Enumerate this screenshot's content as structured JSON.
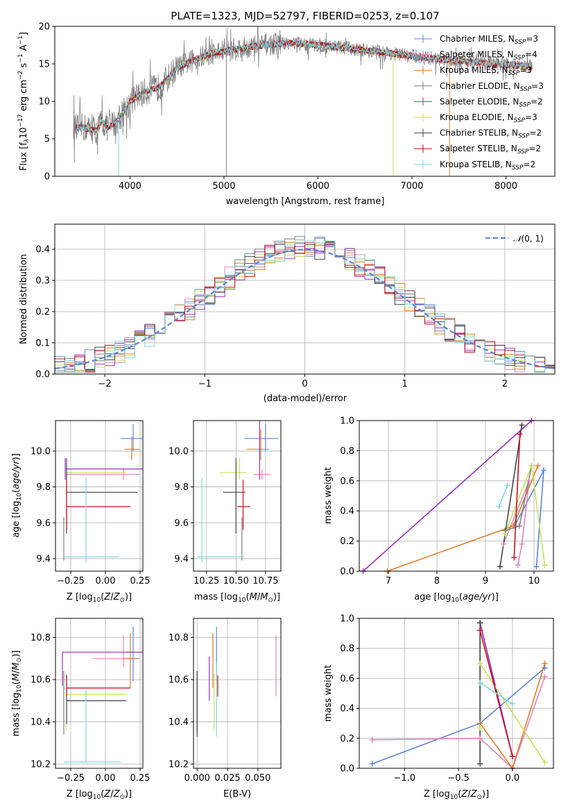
{
  "figure_title": "PLATE=1323, MJD=52797, FIBERID=0253, z=0.107",
  "series_styles": [
    {
      "name": "Chabrier MILES, N_SSP=3",
      "color": "#5b86d6"
    },
    {
      "name": "Salpeter MILES, N_SSP=4",
      "color": "#e087bd"
    },
    {
      "name": "Kroupa MILES, N_SSP=3",
      "color": "#e07b28"
    },
    {
      "name": "Chabrier ELODIE, N_SSP=3",
      "color": "#7f7f7f"
    },
    {
      "name": "Salpeter ELODIE, N_SSP=2",
      "color": "#9b30c0"
    },
    {
      "name": "Kroupa ELODIE, N_SSP=3",
      "color": "#c8e05a"
    },
    {
      "name": "Chabrier STELIB, N_SSP=2",
      "color": "#454545"
    },
    {
      "name": "Salpeter STELIB, N_SSP=2",
      "color": "#c0101e"
    },
    {
      "name": "Kroupa STELIB, N_SSP=2",
      "color": "#7fd7de"
    }
  ],
  "chart_data": [
    {
      "id": "spectrum",
      "type": "line",
      "title": "PLATE=1323, MJD=52797, FIBERID=0253, z=0.107",
      "xlabel": "wavelength [Angstrom, rest frame]",
      "ylabel": "Flux [f_λ 10^-17 erg cm^-2 s^-1 A^-1]",
      "xlim": [
        3200,
        8520
      ],
      "ylim": [
        0,
        20
      ],
      "xticks": [
        4000,
        5000,
        6000,
        7000,
        8000
      ],
      "yticks": [
        0,
        5,
        10,
        15,
        20
      ],
      "grid": false,
      "legend": "right",
      "series_names": [
        "Chabrier MILES, N_SSP=3",
        "Salpeter MILES, N_SSP=4",
        "Kroupa MILES, N_SSP=3",
        "Chabrier ELODIE, N_SSP=3",
        "Salpeter ELODIE, N_SSP=2",
        "Kroupa ELODIE, N_SSP=3",
        "Chabrier STELIB, N_SSP=2",
        "Salpeter STELIB, N_SSP=2",
        "Kroupa STELIB, N_SSP=2"
      ],
      "continuum": {
        "x": [
          3500,
          3650,
          3700,
          3750,
          3850,
          3950,
          4000,
          4100,
          4200,
          4300,
          4400,
          4500,
          4700,
          4900,
          5100,
          5300,
          5500,
          5700,
          5900,
          6100,
          6300,
          6500,
          6700,
          6900,
          7100,
          7300,
          7500,
          7700,
          7900,
          8100,
          8280
        ],
        "y": [
          6.5,
          6.0,
          7.5,
          6.5,
          7.2,
          8.8,
          10.0,
          10.8,
          11.5,
          11.8,
          13.0,
          14.5,
          15.6,
          16.5,
          16.9,
          17.3,
          17.6,
          17.8,
          17.6,
          17.4,
          17.1,
          16.8,
          16.5,
          16.2,
          15.9,
          15.6,
          15.4,
          15.2,
          15.0,
          14.8,
          14.6
        ]
      },
      "noise_amplitude": 1.2,
      "absorption_lines": [
        {
          "x": 3880,
          "y": -2
        },
        {
          "x": 5025,
          "y": 0
        },
        {
          "x": 6800,
          "y": 0
        },
        {
          "x": 7400,
          "y": -2
        }
      ]
    },
    {
      "id": "residuals",
      "type": "step",
      "xlabel": "(data-model)/error",
      "ylabel": "Normed distribution",
      "xlim": [
        -2.5,
        2.5
      ],
      "ylim": [
        0,
        0.48
      ],
      "xticks": [
        -2,
        -1,
        0,
        1,
        2
      ],
      "yticks": [
        0.0,
        0.1,
        0.2,
        0.3,
        0.4
      ],
      "grid": true,
      "legend": "upper right",
      "reference": {
        "name": "N(0,1)",
        "color": "#5b86d6"
      },
      "bin_width": 0.1
    },
    {
      "id": "age_vs_Z",
      "type": "errorbar",
      "xlabel": "Z [log10(Z/Z⊙)]",
      "ylabel": "age  [log10(age/yr)]",
      "xlim": [
        -0.36,
        0.27
      ],
      "ylim": [
        9.33,
        10.17
      ],
      "xticks": [
        -0.25,
        0.0,
        0.25
      ],
      "yticks": [
        9.4,
        9.6,
        9.8,
        10.0
      ],
      "grid": true,
      "points": [
        {
          "x": 0.2,
          "y": 10.07,
          "xerr": [
            0.09,
            0.07
          ],
          "yerr": [
            0.07,
            0.08
          ]
        },
        {
          "x": 0.13,
          "y": 9.87,
          "xerr": [
            0.42,
            0.12
          ],
          "yerr": [
            0.03,
            0.03
          ]
        },
        {
          "x": 0.19,
          "y": 10.01,
          "xerr": [
            0.05,
            0.06
          ],
          "yerr": [
            0.06,
            0.07
          ]
        },
        {
          "x": -0.3,
          "y": 9.51,
          "xerr": [
            0.0,
            0.0
          ],
          "yerr": [
            0.12,
            0.12
          ]
        },
        {
          "x": -0.29,
          "y": 9.9,
          "xerr": [
            0.0,
            0.59
          ],
          "yerr": [
            0.06,
            0.06
          ]
        },
        {
          "x": -0.28,
          "y": 9.88,
          "xerr": [
            0.0,
            0.43
          ],
          "yerr": [
            0.04,
            0.04
          ]
        },
        {
          "x": -0.28,
          "y": 9.77,
          "xerr": [
            0.0,
            0.51
          ],
          "yerr": [
            0.23,
            0.19
          ]
        },
        {
          "x": -0.28,
          "y": 9.69,
          "xerr": [
            0.0,
            0.46
          ],
          "yerr": [
            0.13,
            0.15
          ]
        },
        {
          "x": -0.14,
          "y": 9.41,
          "xerr": [
            0.16,
            0.24
          ],
          "yerr": [
            0.03,
            0.44
          ]
        }
      ]
    },
    {
      "id": "age_vs_mass",
      "type": "errorbar",
      "xlabel": "mass [log10(M/M⊙)]",
      "ylabel": "",
      "xlim": [
        10.14,
        10.88
      ],
      "ylim": [
        9.33,
        10.17
      ],
      "xticks": [
        10.25,
        10.5,
        10.75
      ],
      "yticks": [
        9.4,
        9.6,
        9.8,
        10.0
      ],
      "grid": true,
      "points": [
        {
          "x": 10.75,
          "y": 10.07,
          "xerr": [
            0.18,
            0.11
          ],
          "yerr": [
            0.07,
            0.08
          ]
        },
        {
          "x": 10.72,
          "y": 9.87,
          "xerr": [
            0.07,
            0.07
          ],
          "yerr": [
            0.03,
            0.03
          ]
        },
        {
          "x": 10.71,
          "y": 10.01,
          "xerr": [
            0.12,
            0.07
          ],
          "yerr": [
            0.06,
            0.11
          ]
        },
        {
          "x": 10.55,
          "y": 9.51,
          "xerr": [
            0.0,
            0.0
          ],
          "yerr": [
            0.12,
            0.12
          ]
        },
        {
          "x": 10.7,
          "y": 9.9,
          "xerr": [
            0.0,
            0.0
          ],
          "yerr": [
            0.06,
            0.39
          ]
        },
        {
          "x": 10.53,
          "y": 9.88,
          "xerr": [
            0.17,
            0.06
          ],
          "yerr": [
            0.04,
            0.08
          ]
        },
        {
          "x": 10.5,
          "y": 9.77,
          "xerr": [
            0.11,
            0.08
          ],
          "yerr": [
            0.23,
            0.19
          ]
        },
        {
          "x": 10.56,
          "y": 9.69,
          "xerr": [
            0.05,
            0.06
          ],
          "yerr": [
            0.13,
            0.15
          ]
        },
        {
          "x": 10.21,
          "y": 9.41,
          "xerr": [
            0.04,
            0.36
          ],
          "yerr": [
            0.03,
            0.44
          ]
        }
      ]
    },
    {
      "id": "weight_vs_age",
      "type": "line",
      "xlabel": "age  [log10(age/yr)]",
      "ylabel": "mass weight",
      "xlim": [
        6.4,
        10.4
      ],
      "ylim": [
        0,
        1
      ],
      "xticks": [
        7,
        8,
        9,
        10
      ],
      "yticks": [
        0.0,
        0.2,
        0.4,
        0.6,
        0.8,
        1.0
      ],
      "grid": true,
      "series": [
        {
          "x": [
            9.6,
            10.2,
            10.05
          ],
          "y": [
            0.3,
            0.67,
            0.03
          ]
        },
        {
          "x": [
            9.37,
            9.9,
            9.75,
            9.67
          ],
          "y": [
            0.18,
            0.6,
            0.18,
            0.04
          ]
        },
        {
          "x": [
            6.98,
            9.57,
            10.08
          ],
          "y": [
            0.0,
            0.3,
            0.7
          ]
        },
        {
          "x": [
            9.4,
            9.7,
            9.95
          ],
          "y": [
            0.27,
            0.3,
            0.7
          ]
        },
        {
          "x": [
            6.48,
            9.95
          ],
          "y": [
            0.0,
            1.0
          ]
        },
        {
          "x": [
            9.4,
            9.95,
            10.22
          ],
          "y": [
            0.25,
            0.7,
            0.04
          ]
        },
        {
          "x": [
            9.3,
            9.75
          ],
          "y": [
            0.03,
            0.97
          ]
        },
        {
          "x": [
            9.59,
            9.71
          ],
          "y": [
            0.09,
            0.91
          ]
        },
        {
          "x": [
            9.28,
            9.45
          ],
          "y": [
            0.43,
            0.57
          ]
        }
      ]
    },
    {
      "id": "mass_vs_Z",
      "type": "errorbar",
      "xlabel": "Z [log10(Z/Z⊙)]",
      "ylabel": "mass [log10(M/M⊙)]",
      "xlim": [
        -0.36,
        0.27
      ],
      "ylim": [
        10.18,
        10.89
      ],
      "xticks": [
        -0.25,
        0.0,
        0.25
      ],
      "yticks": [
        10.2,
        10.4,
        10.6,
        10.8
      ],
      "grid": true,
      "points": [
        {
          "x": 0.2,
          "y": 10.73,
          "xerr": [
            0.06,
            0.06
          ],
          "yerr": [
            0.14,
            0.12
          ]
        },
        {
          "x": 0.13,
          "y": 10.7,
          "xerr": [
            0.22,
            0.12
          ],
          "yerr": [
            0.04,
            0.11
          ]
        },
        {
          "x": 0.18,
          "y": 10.7,
          "xerr": [
            0.05,
            0.06
          ],
          "yerr": [
            0.14,
            0.12
          ]
        },
        {
          "x": -0.3,
          "y": 10.5,
          "xerr": [
            0.0,
            0.0
          ],
          "yerr": [
            0.16,
            0.14
          ]
        },
        {
          "x": -0.31,
          "y": 10.73,
          "xerr": [
            0.0,
            0.62
          ],
          "yerr": [
            0.16,
            0.0
          ]
        },
        {
          "x": -0.28,
          "y": 10.53,
          "xerr": [
            0.0,
            0.43
          ],
          "yerr": [
            0.17,
            0.1
          ]
        },
        {
          "x": -0.28,
          "y": 10.5,
          "xerr": [
            0.0,
            0.43
          ],
          "yerr": [
            0.11,
            0.12
          ]
        },
        {
          "x": -0.28,
          "y": 10.56,
          "xerr": [
            0.0,
            0.46
          ],
          "yerr": [
            0.04,
            0.06
          ]
        },
        {
          "x": -0.14,
          "y": 10.21,
          "xerr": [
            0.16,
            0.25
          ],
          "yerr": [
            0.0,
            0.34
          ]
        }
      ]
    },
    {
      "id": "mass_vs_ebv",
      "type": "errorbar",
      "xlabel": "E(B-V)",
      "ylabel": "",
      "xlim": [
        -0.003,
        0.069
      ],
      "ylim": [
        10.18,
        10.89
      ],
      "xticks": [
        0.0,
        0.025,
        0.05
      ],
      "yticks": [
        10.2,
        10.4,
        10.6,
        10.8
      ],
      "grid": true,
      "points": [
        {
          "x": 0.016,
          "y": 10.73,
          "xerr": [
            0,
            0
          ],
          "yerr": [
            0.14,
            0.12
          ]
        },
        {
          "x": 0.065,
          "y": 10.7,
          "xerr": [
            0,
            0
          ],
          "yerr": [
            0.18,
            0.11
          ]
        },
        {
          "x": 0.013,
          "y": 10.7,
          "xerr": [
            0,
            0
          ],
          "yerr": [
            0.14,
            0.12
          ]
        },
        {
          "x": 0.0,
          "y": 10.5,
          "xerr": [
            0,
            0
          ],
          "yerr": [
            0.16,
            0.14
          ]
        },
        {
          "x": 0.01,
          "y": 10.57,
          "xerr": [
            0,
            0
          ],
          "yerr": [
            0.07,
            0.14
          ]
        },
        {
          "x": 0.014,
          "y": 10.53,
          "xerr": [
            0,
            0
          ],
          "yerr": [
            0.17,
            0.1
          ]
        },
        {
          "x": 0.0,
          "y": 10.5,
          "xerr": [
            0,
            0
          ],
          "yerr": [
            0.17,
            0.14
          ]
        },
        {
          "x": 0.017,
          "y": 10.56,
          "xerr": [
            0,
            0
          ],
          "yerr": [
            0.04,
            0.06
          ]
        },
        {
          "x": 0.016,
          "y": 10.52,
          "xerr": [
            0,
            0
          ],
          "yerr": [
            0.19,
            0.16
          ]
        }
      ]
    },
    {
      "id": "weight_vs_Z",
      "type": "line",
      "xlabel": "Z [log10(Z/Z⊙)]",
      "ylabel": "mass weight",
      "xlim": [
        -1.42,
        0.38
      ],
      "ylim": [
        0,
        1
      ],
      "xticks": [
        -1.0,
        -0.5,
        0.0
      ],
      "yticks": [
        0.0,
        0.2,
        0.4,
        0.6,
        0.8,
        1.0
      ],
      "grid": true,
      "series": [
        {
          "x": [
            -1.3,
            -0.3,
            0.3
          ],
          "y": [
            0.03,
            0.3,
            0.67
          ]
        },
        {
          "x": [
            -1.3,
            -0.3,
            0.0,
            0.3
          ],
          "y": [
            0.19,
            0.2,
            0.0,
            0.61
          ]
        },
        {
          "x": [
            -0.3,
            0.0,
            0.3
          ],
          "y": [
            0.3,
            0.0,
            0.7
          ]
        },
        {
          "x": [
            -0.3,
            -0.3,
            0.0
          ],
          "y": [
            0.03,
            0.97,
            0.08
          ]
        },
        {
          "x": [
            -0.3,
            0.0
          ],
          "y": [
            0.97,
            0.08
          ]
        },
        {
          "x": [
            -0.3,
            -0.3,
            0.3
          ],
          "y": [
            0.27,
            0.7,
            0.04
          ]
        },
        {
          "x": [
            -0.3,
            -0.3
          ],
          "y": [
            0.03,
            0.97
          ]
        },
        {
          "x": [
            -0.3,
            -0.3,
            0.0
          ],
          "y": [
            0.92,
            0.92,
            0.08
          ]
        },
        {
          "x": [
            -0.3,
            0.0
          ],
          "y": [
            0.57,
            0.43
          ]
        }
      ]
    }
  ]
}
